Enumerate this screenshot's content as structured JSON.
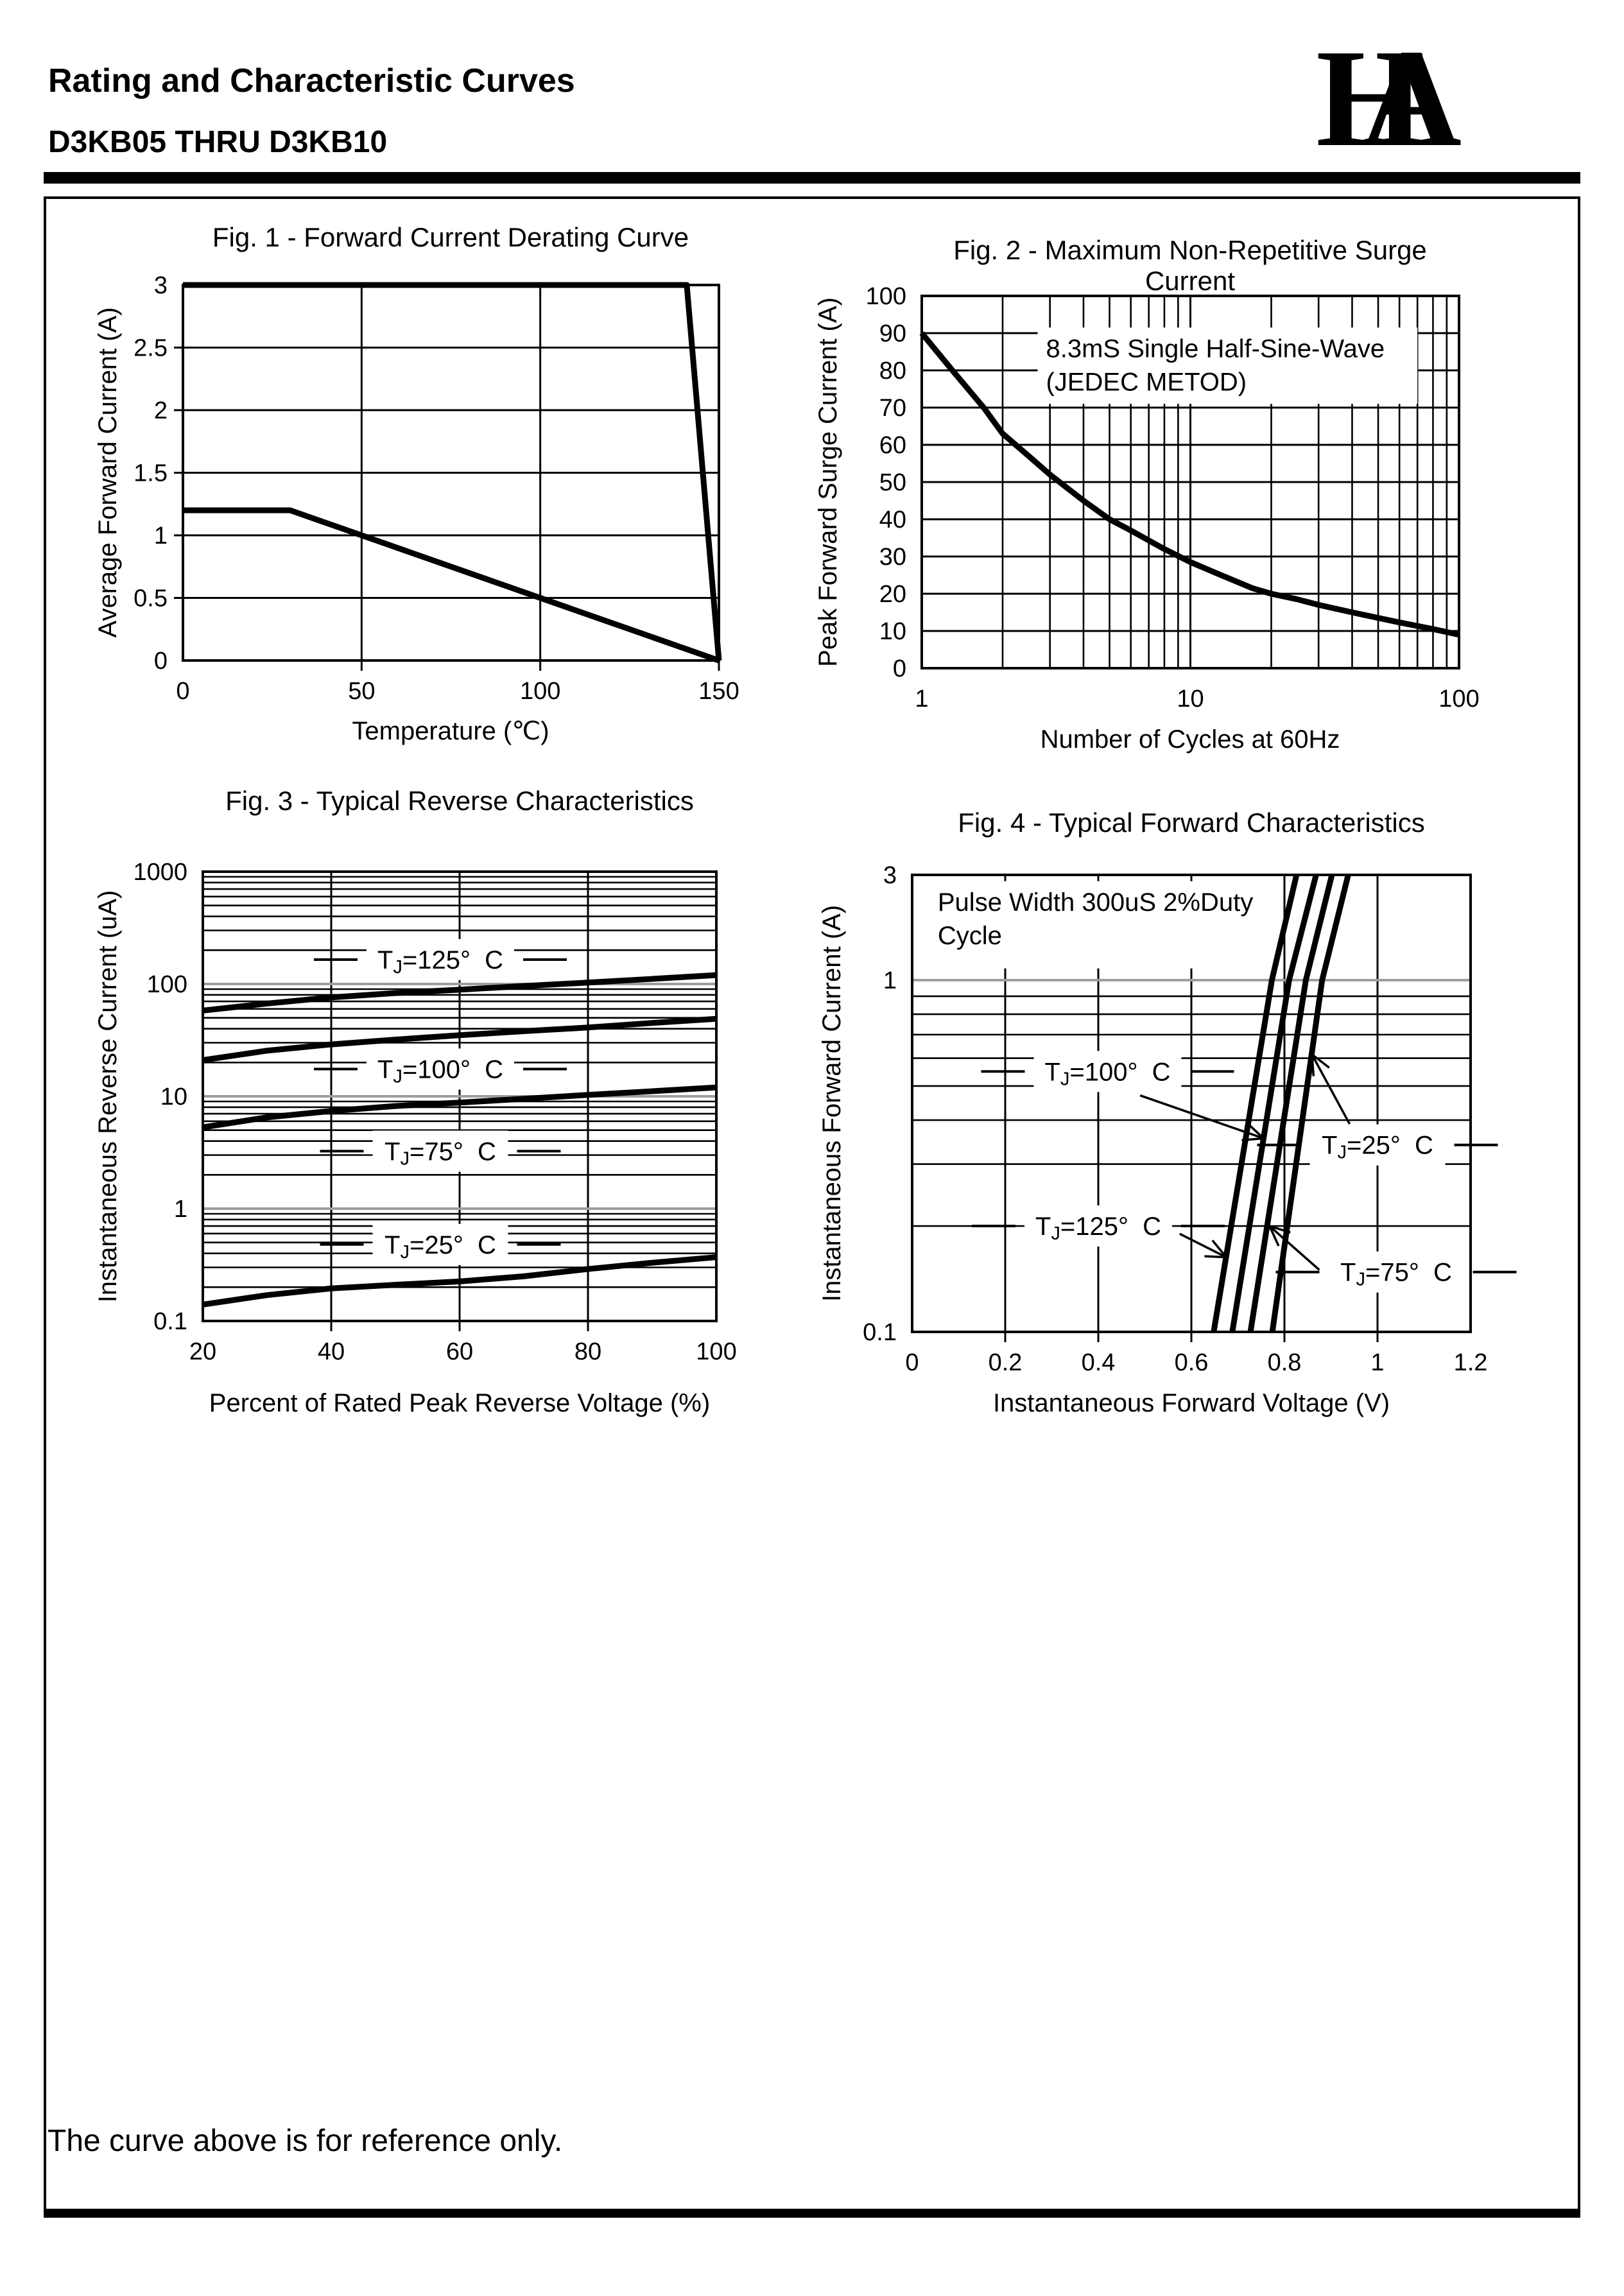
{
  "header": {
    "title": "Rating and Characteristic Curves",
    "model": "D3KB05 THRU D3KB10",
    "logo_letters": [
      "H",
      "A"
    ]
  },
  "footer": {
    "note": "The curve above is for reference only."
  },
  "colors": {
    "ink": "#000000",
    "grid_major_grey": "#9e9e9e",
    "paper": "#ffffff"
  },
  "chart_data": [
    {
      "name": "fig1-forward-current-derating",
      "type": "line",
      "title": "Fig. 1 - Forward Current Derating Curve",
      "x_label": "Temperature (℃)",
      "y_label": "Average Forward Current (A)",
      "x_axis": {
        "scale": "linear",
        "min": 0,
        "max": 150,
        "ticks": [
          {
            "v": 0,
            "t": "0"
          },
          {
            "v": 50,
            "t": "50"
          },
          {
            "v": 100,
            "t": "100"
          },
          {
            "v": 150,
            "t": "150"
          }
        ],
        "grid": [
          50,
          100
        ],
        "minor": [],
        "stubs": [
          50,
          100,
          150
        ]
      },
      "y_axis": {
        "scale": "linear",
        "min": 0,
        "max": 3,
        "ticks": [
          {
            "v": 3,
            "t": "3"
          },
          {
            "v": 2.5,
            "t": "2.5"
          },
          {
            "v": 2,
            "t": "2"
          },
          {
            "v": 1.5,
            "t": "1.5"
          },
          {
            "v": 1,
            "t": "1"
          },
          {
            "v": 0.5,
            "t": "0.5"
          },
          {
            "v": 0,
            "t": "0"
          }
        ],
        "grid": [
          0.5,
          1,
          1.5,
          2,
          2.5
        ],
        "minor": [],
        "stubs": [
          0.5,
          1,
          1.5,
          2,
          2.5
        ]
      },
      "series": [
        {
          "id": "upper-rating-curve",
          "points": [
            [
              0,
              3
            ],
            [
              141,
              3
            ],
            [
              150,
              0
            ]
          ]
        },
        {
          "id": "derating-curve",
          "points": [
            [
              0,
              1.2
            ],
            [
              30,
              1.2
            ],
            [
              150,
              0
            ]
          ]
        }
      ],
      "annotations": [],
      "curve_labels": [],
      "arrows": []
    },
    {
      "name": "fig2-maximum-non-repetitive-surge-current",
      "type": "line",
      "title": "Fig. 2 - Maximum Non-Repetitive Surge Current",
      "x_label": "Number of Cycles at 60Hz",
      "y_label": "Peak Forward Surge Current (A)",
      "x_axis": {
        "scale": "log",
        "min": 1,
        "max": 100,
        "ticks": [
          {
            "v": 1,
            "t": "1"
          },
          {
            "v": 10,
            "t": "10"
          },
          {
            "v": 100,
            "t": "100"
          }
        ],
        "grid": [
          10
        ],
        "minor": [
          2,
          3,
          4,
          5,
          6,
          7,
          8,
          9,
          20,
          30,
          40,
          50,
          60,
          70,
          80,
          90
        ],
        "stubs": []
      },
      "y_axis": {
        "scale": "linear",
        "min": 0,
        "max": 100,
        "ticks": [
          {
            "v": 100,
            "t": "100"
          },
          {
            "v": 90,
            "t": "90"
          },
          {
            "v": 80,
            "t": "80"
          },
          {
            "v": 70,
            "t": "70"
          },
          {
            "v": 60,
            "t": "60"
          },
          {
            "v": 50,
            "t": "50"
          },
          {
            "v": 40,
            "t": "40"
          },
          {
            "v": 30,
            "t": "30"
          },
          {
            "v": 20,
            "t": "20"
          },
          {
            "v": 10,
            "t": "10"
          },
          {
            "v": 0,
            "t": "0"
          }
        ],
        "grid": [
          10,
          20,
          30,
          40,
          50,
          60,
          70,
          80,
          90
        ],
        "minor": [],
        "stubs": []
      },
      "series": [
        {
          "id": "surge-current",
          "points": [
            [
              1,
              90
            ],
            [
              1.3,
              80
            ],
            [
              1.7,
              70
            ],
            [
              2,
              63
            ],
            [
              2.5,
              57
            ],
            [
              3,
              52
            ],
            [
              4,
              45
            ],
            [
              5,
              40
            ],
            [
              6,
              37
            ],
            [
              8,
              32
            ],
            [
              10,
              28.5
            ],
            [
              13,
              25
            ],
            [
              17,
              21.5
            ],
            [
              20,
              20
            ],
            [
              25,
              18.5
            ],
            [
              30,
              17
            ],
            [
              40,
              15
            ],
            [
              50,
              13.5
            ],
            [
              60,
              12.3
            ],
            [
              80,
              10.5
            ],
            [
              100,
              9
            ]
          ]
        }
      ],
      "annotations": [
        {
          "x1": 2.7,
          "y1": 91.5,
          "x2": 70,
          "y2": 71,
          "text_x": 2.9,
          "lines": [
            "8.3mS Single Half-Sine-Wave",
            "(JEDEC METOD)"
          ]
        }
      ],
      "curve_labels": [],
      "arrows": []
    },
    {
      "name": "fig3-typical-reverse-characteristics",
      "type": "line",
      "title": "Fig. 3 - Typical Reverse Characteristics",
      "x_label": "Percent of Rated Peak Reverse Voltage (%)",
      "y_label": "Instantaneous Reverse Current (uA)",
      "x_axis": {
        "scale": "linear",
        "min": 20,
        "max": 100,
        "ticks": [
          {
            "v": 20,
            "t": "20"
          },
          {
            "v": 40,
            "t": "40"
          },
          {
            "v": 60,
            "t": "60"
          },
          {
            "v": 80,
            "t": "80"
          },
          {
            "v": 100,
            "t": "100"
          }
        ],
        "grid": [
          40,
          60,
          80
        ],
        "minor": [],
        "stubs": [
          40,
          60,
          80
        ]
      },
      "y_axis": {
        "scale": "log",
        "min": 0.1,
        "max": 1000,
        "ticks": [
          {
            "v": 1000,
            "t": "1000"
          },
          {
            "v": 100,
            "t": "100"
          },
          {
            "v": 10,
            "t": "10"
          },
          {
            "v": 1,
            "t": "1"
          },
          {
            "v": 0.1,
            "t": "0.1"
          }
        ],
        "grid": [
          1,
          10,
          100
        ],
        "grid_color": "#9e9e9e",
        "minor": [
          0.2,
          0.3,
          0.4,
          0.5,
          0.6,
          0.7,
          0.8,
          0.9,
          2,
          3,
          4,
          5,
          6,
          7,
          8,
          9,
          20,
          30,
          40,
          50,
          60,
          70,
          80,
          90,
          200,
          300,
          400,
          500,
          600,
          700,
          800,
          900
        ],
        "stubs": []
      },
      "series": [
        {
          "id": "tj-125",
          "temp": "125",
          "points": [
            [
              20,
              58
            ],
            [
              30,
              67
            ],
            [
              40,
              76
            ],
            [
              50,
              83
            ],
            [
              60,
              89
            ],
            [
              70,
              96
            ],
            [
              80,
              103
            ],
            [
              90,
              111
            ],
            [
              100,
              120
            ]
          ]
        },
        {
          "id": "tj-100",
          "temp": "100",
          "points": [
            [
              20,
              21
            ],
            [
              30,
              25.5
            ],
            [
              40,
              29
            ],
            [
              50,
              32
            ],
            [
              60,
              35
            ],
            [
              70,
              38
            ],
            [
              80,
              41
            ],
            [
              90,
              45
            ],
            [
              100,
              49
            ]
          ]
        },
        {
          "id": "tj-75",
          "temp": "75",
          "points": [
            [
              20,
              5.3
            ],
            [
              30,
              6.5
            ],
            [
              40,
              7.4
            ],
            [
              50,
              8.2
            ],
            [
              60,
              8.8
            ],
            [
              70,
              9.5
            ],
            [
              80,
              10.3
            ],
            [
              90,
              11.1
            ],
            [
              100,
              12
            ]
          ]
        },
        {
          "id": "tj-25",
          "temp": "25",
          "points": [
            [
              20,
              0.14
            ],
            [
              30,
              0.17
            ],
            [
              40,
              0.195
            ],
            [
              50,
              0.21
            ],
            [
              60,
              0.225
            ],
            [
              70,
              0.25
            ],
            [
              80,
              0.29
            ],
            [
              90,
              0.33
            ],
            [
              100,
              0.37
            ]
          ]
        }
      ],
      "annotations": [],
      "curve_labels": [
        {
          "prefix": "T",
          "sub": "J",
          "suffix": "=125°  C",
          "x": 57,
          "y": 165,
          "dashes": true
        },
        {
          "prefix": "T",
          "sub": "J",
          "suffix": "=100°  C",
          "x": 57,
          "y": 17.5,
          "dashes": true
        },
        {
          "prefix": "T",
          "sub": "J",
          "suffix": "=75°  C",
          "x": 57,
          "y": 3.25,
          "dashes": true
        },
        {
          "prefix": "T",
          "sub": "J",
          "suffix": "=25°  C",
          "x": 57,
          "y": 0.48,
          "dashes": true
        }
      ],
      "arrows": []
    },
    {
      "name": "fig4-typical-forward-characteristics",
      "type": "line",
      "title": "Fig. 4 - Typical Forward Characteristics",
      "x_label": "Instantaneous Forward Voltage (V)",
      "y_label": "Instantaneous Forward Current (A)",
      "x_axis": {
        "scale": "linear",
        "min": 0,
        "max": 1.2,
        "ticks": [
          {
            "v": 0,
            "t": "0"
          },
          {
            "v": 0.2,
            "t": "0.2"
          },
          {
            "v": 0.4,
            "t": "0.4"
          },
          {
            "v": 0.6,
            "t": "0.6"
          },
          {
            "v": 0.8,
            "t": "0.8"
          },
          {
            "v": 1,
            "t": "1"
          },
          {
            "v": 1.2,
            "t": "1.2"
          }
        ],
        "grid": [
          0.2,
          0.4,
          0.6,
          0.8,
          1
        ],
        "minor": [],
        "stubs": [
          0.2,
          0.4,
          0.6,
          0.8,
          1
        ]
      },
      "y_axis": {
        "scale": "log",
        "min": 0.1,
        "max": 3,
        "anchors": [
          [
            0.1,
            0
          ],
          [
            1,
            0.7697
          ],
          [
            3,
            1
          ]
        ],
        "ticks": [
          {
            "v": 3,
            "t": "3"
          },
          {
            "v": 1,
            "t": "1"
          },
          {
            "v": 0.1,
            "t": "0.1"
          }
        ],
        "grid": [
          1
        ],
        "grid_color": "#9e9e9e",
        "minor": [
          0.2,
          0.3,
          0.4,
          0.5,
          0.6,
          0.7,
          0.8,
          0.9
        ],
        "stubs": []
      },
      "series": [
        {
          "id": "tj-125",
          "temp": "125",
          "points": [
            [
              0.648,
              0.1
            ],
            [
              0.773,
              1
            ],
            [
              0.826,
              3
            ]
          ]
        },
        {
          "id": "tj-100",
          "temp": "100",
          "points": [
            [
              0.688,
              0.1
            ],
            [
              0.81,
              1
            ],
            [
              0.868,
              3
            ]
          ]
        },
        {
          "id": "tj-75",
          "temp": "75",
          "points": [
            [
              0.727,
              0.1
            ],
            [
              0.846,
              1
            ],
            [
              0.902,
              3
            ]
          ]
        },
        {
          "id": "tj-25",
          "temp": "25",
          "points": [
            [
              0.774,
              0.1
            ],
            [
              0.881,
              1
            ],
            [
              0.937,
              3
            ]
          ]
        }
      ],
      "annotations": [
        {
          "x1": 0.035,
          "y1": 2.81,
          "x2": 0.76,
          "y2": 1.13,
          "text_x": 0.055,
          "lines": [
            "Pulse Width 300uS 2%Duty",
            "Cycle"
          ]
        }
      ],
      "curve_labels": [
        {
          "prefix": "T",
          "sub": "J",
          "suffix": "=100°  C",
          "x": 0.42,
          "y": 0.55,
          "dashes": true
        },
        {
          "prefix": "T",
          "sub": "J",
          "suffix": "=25°  C",
          "x": 1.0,
          "y": 0.34,
          "dashes": true
        },
        {
          "prefix": "T",
          "sub": "J",
          "suffix": "=125°  C",
          "x": 0.4,
          "y": 0.2,
          "dashes": true
        },
        {
          "prefix": "T",
          "sub": "J",
          "suffix": "=75°  C",
          "x": 1.04,
          "y": 0.148,
          "dashes": true
        }
      ],
      "arrows": [
        {
          "from": [
            0.49,
            0.47
          ],
          "to": [
            0.755,
            0.355
          ]
        },
        {
          "from": [
            0.94,
            0.39
          ],
          "to": [
            0.859,
            0.615
          ]
        },
        {
          "from": [
            0.575,
            0.19
          ],
          "to": [
            0.675,
            0.163
          ]
        },
        {
          "from": [
            0.875,
            0.15
          ],
          "to": [
            0.768,
            0.2
          ]
        }
      ]
    }
  ]
}
